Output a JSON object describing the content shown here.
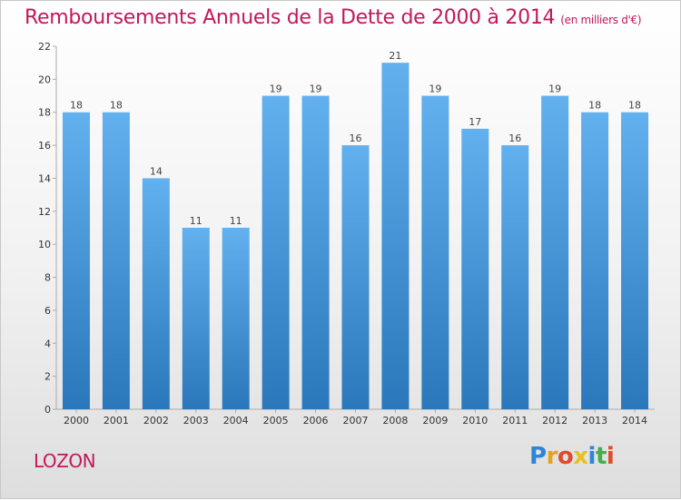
{
  "chart_data": {
    "type": "bar",
    "title": "Remboursements Annuels de la Dette de 2000 à 2014",
    "subtitle": "(en milliers d'€)",
    "categories": [
      "2000",
      "2001",
      "2002",
      "2003",
      "2004",
      "2005",
      "2006",
      "2007",
      "2008",
      "2009",
      "2010",
      "2011",
      "2012",
      "2013",
      "2014"
    ],
    "values": [
      18,
      18,
      14,
      11,
      11,
      19,
      19,
      16,
      21,
      19,
      17,
      16,
      19,
      18,
      18
    ],
    "ylim": [
      0,
      22
    ],
    "yticks": [
      0,
      2,
      4,
      6,
      8,
      10,
      12,
      14,
      16,
      18,
      20,
      22
    ],
    "grid": false,
    "xlabel": "",
    "ylabel": "",
    "bar_color_top": "#62b0ee",
    "bar_color_bottom": "#2a78bb"
  },
  "footer": {
    "commune": "LOZON",
    "logo_text": "Proxiti",
    "logo_colors": [
      "#2e86d6",
      "#e8a11a",
      "#e14a2a",
      "#e8c21a",
      "#2e86d6",
      "#3fb24a",
      "#e14a2a"
    ]
  }
}
